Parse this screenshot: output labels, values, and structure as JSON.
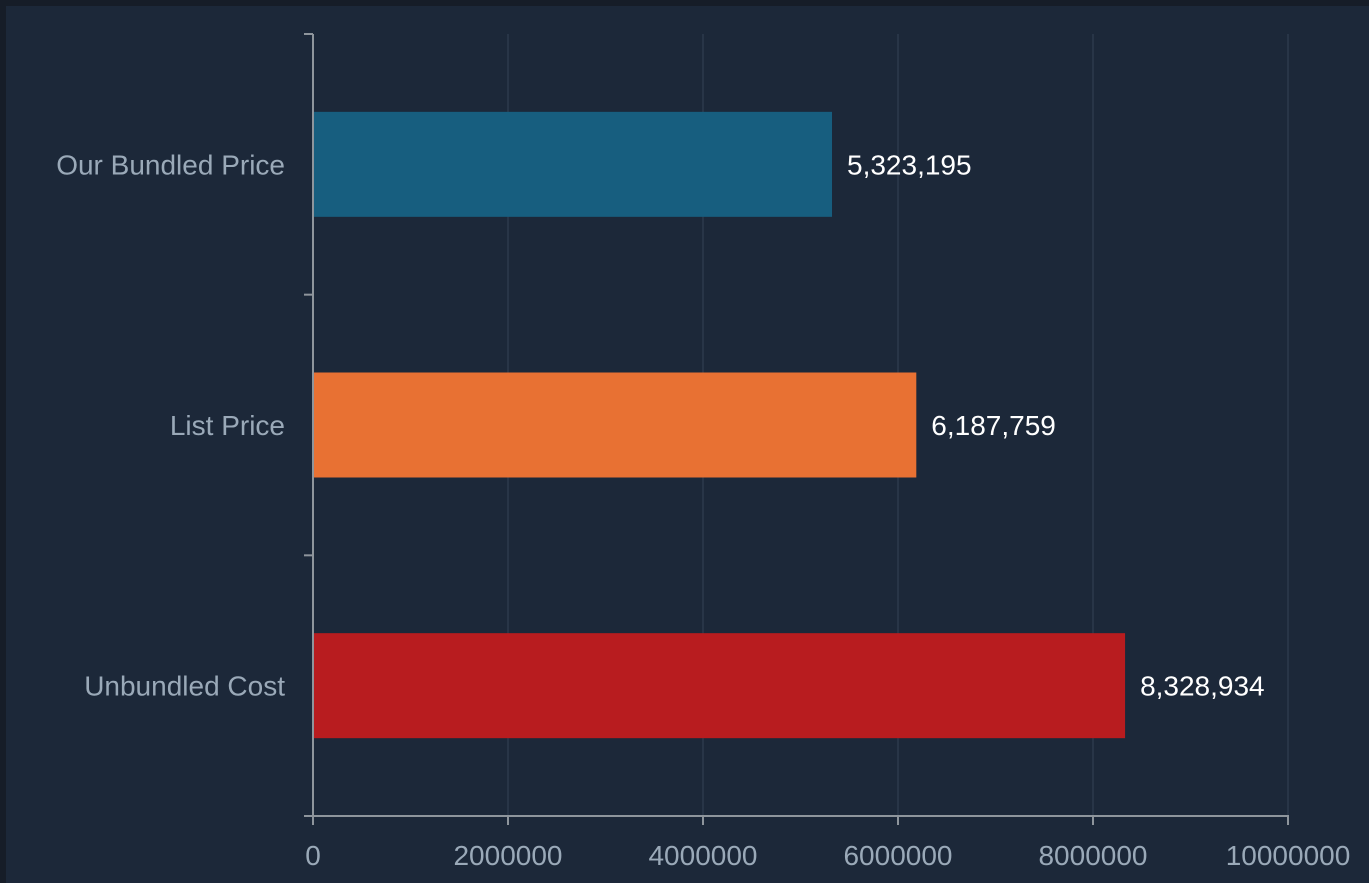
{
  "chart_data": {
    "type": "bar",
    "orientation": "horizontal",
    "categories": [
      "Our Bundled Price",
      "List Price",
      "Unbundled Cost"
    ],
    "values": [
      5323195,
      6187759,
      8328934
    ],
    "value_labels": [
      "5,323,195",
      "6,187,759",
      "8,328,934"
    ],
    "colors": [
      "#175e7f",
      "#e87133",
      "#b81c1f"
    ],
    "xlim": [
      0,
      10000000
    ],
    "xticks": [
      "0",
      "2000000",
      "4000000",
      "6000000",
      "8000000",
      "10000000"
    ],
    "grid": "vertical",
    "background": "#1c2839"
  }
}
